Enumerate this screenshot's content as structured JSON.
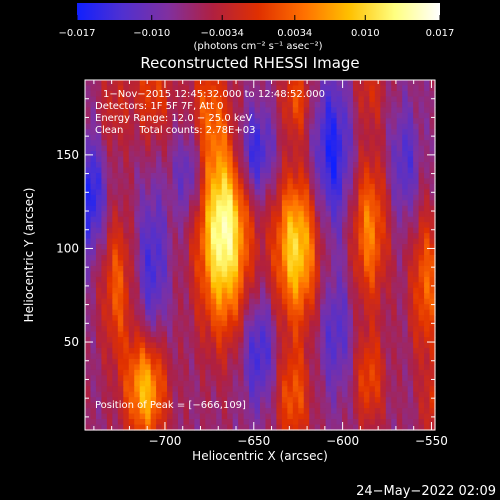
{
  "chart_data": {
    "type": "heatmap",
    "title": "Reconstructed RHESSI Image",
    "xlabel": "Heliocentric X (arcsec)",
    "ylabel": "Heliocentric Y (arcsec)",
    "xlim": [
      -745,
      -548
    ],
    "ylim": [
      3,
      190
    ],
    "x_ticks": [
      -700,
      -650,
      -600,
      -550
    ],
    "x_tick_labels": [
      "−700",
      "−650",
      "−600",
      "−550"
    ],
    "y_ticks": [
      50,
      100,
      150
    ],
    "y_tick_labels": [
      "50",
      "100",
      "150"
    ],
    "annotations": [
      "1−Nov−2015 12:45:32.000 to 12:48:52.000",
      "Detectors: 1F 5F 7F, Att 0",
      "Energy Range: 12.0 − 25.0 keV",
      "Clean     Total counts: 2.78E+03"
    ],
    "peak_label": "Position of Peak = [−666,109]",
    "peak_position": [
      -666,
      109
    ],
    "colorbar": {
      "min": -0.017,
      "max": 0.017,
      "tick_values": [
        -0.017,
        -0.01,
        -0.0034,
        0.0034,
        0.01,
        0.017
      ],
      "tick_labels": [
        "−0.017",
        "−0.010",
        "−0.0034",
        "0.0034",
        "0.010",
        "0.017"
      ],
      "units": "(photons cm⁻² s⁻¹ asec⁻²)",
      "colors": [
        "#1020ff",
        "#5030d0",
        "#8030a0",
        "#b02040",
        "#e03000",
        "#ff7000",
        "#ffc000",
        "#ffff80",
        "#ffffff"
      ]
    },
    "source_bands": [
      {
        "x": -743,
        "y": 128,
        "sx": 7,
        "sy": 22,
        "amp": -0.55
      },
      {
        "x": -729,
        "y": 175,
        "sx": 6,
        "sy": 18,
        "amp": 0.25
      },
      {
        "x": -727,
        "y": 80,
        "sx": 6,
        "sy": 28,
        "amp": 0.5
      },
      {
        "x": -707,
        "y": 185,
        "sx": 8,
        "sy": 20,
        "amp": 0.4
      },
      {
        "x": -707,
        "y": 90,
        "sx": 6,
        "sy": 30,
        "amp": -0.4
      },
      {
        "x": -711,
        "y": 25,
        "sx": 8,
        "sy": 20,
        "amp": 0.85
      },
      {
        "x": -686,
        "y": 140,
        "sx": 6,
        "sy": 18,
        "amp": -0.4
      },
      {
        "x": -667,
        "y": 109,
        "sx": 10,
        "sy": 36,
        "amp": 1.2
      },
      {
        "x": -676,
        "y": 175,
        "sx": 7,
        "sy": 20,
        "amp": 0.4
      },
      {
        "x": -650,
        "y": 150,
        "sx": 8,
        "sy": 18,
        "amp": -0.55
      },
      {
        "x": -647,
        "y": 45,
        "sx": 7,
        "sy": 22,
        "amp": -0.45
      },
      {
        "x": -626,
        "y": 100,
        "sx": 9,
        "sy": 28,
        "amp": 0.95
      },
      {
        "x": -628,
        "y": 20,
        "sx": 7,
        "sy": 20,
        "amp": 0.5
      },
      {
        "x": -626,
        "y": 180,
        "sx": 6,
        "sy": 15,
        "amp": 0.45
      },
      {
        "x": -606,
        "y": 150,
        "sx": 8,
        "sy": 30,
        "amp": -0.55
      },
      {
        "x": -604,
        "y": 55,
        "sx": 7,
        "sy": 24,
        "amp": -0.35
      },
      {
        "x": -585,
        "y": 110,
        "sx": 7,
        "sy": 28,
        "amp": 0.65
      },
      {
        "x": -585,
        "y": 30,
        "sx": 6,
        "sy": 18,
        "amp": 0.45
      },
      {
        "x": -585,
        "y": 185,
        "sx": 6,
        "sy": 14,
        "amp": 0.3
      },
      {
        "x": -565,
        "y": 145,
        "sx": 6,
        "sy": 22,
        "amp": -0.35
      },
      {
        "x": -553,
        "y": 80,
        "sx": 6,
        "sy": 28,
        "amp": 0.55
      },
      {
        "x": -548,
        "y": 15,
        "sx": 5,
        "sy": 15,
        "amp": 0.35
      }
    ]
  },
  "footer": {
    "timestamp": "24−May−2022 02:09"
  }
}
